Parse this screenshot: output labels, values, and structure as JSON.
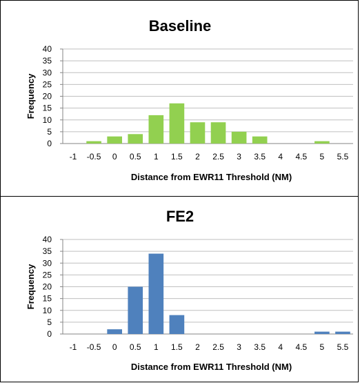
{
  "chart_data": [
    {
      "type": "bar",
      "title": "Baseline",
      "xlabel": "Distance from EWR11 Threshold (NM)",
      "ylabel": "Frequency",
      "categories": [
        "-1",
        "-0.5",
        "0",
        "0.5",
        "1",
        "1.5",
        "2",
        "2.5",
        "3",
        "3.5",
        "4",
        "4.5",
        "5",
        "5.5"
      ],
      "values": [
        0,
        1,
        3,
        4,
        12,
        17,
        9,
        9,
        5,
        3,
        0,
        0,
        1,
        0
      ],
      "ylim": [
        0,
        40
      ],
      "yticks": [
        "0",
        "5",
        "10",
        "15",
        "20",
        "25",
        "30",
        "35",
        "40"
      ],
      "color": "#92d050",
      "grid": true
    },
    {
      "type": "bar",
      "title": "FE2",
      "xlabel": "Distance from EWR11 Threshold (NM)",
      "ylabel": "Frequency",
      "categories": [
        "-1",
        "-0.5",
        "0",
        "0.5",
        "1",
        "1.5",
        "2",
        "2.5",
        "3",
        "3.5",
        "4",
        "4.5",
        "5",
        "5.5"
      ],
      "values": [
        0,
        0,
        2,
        20,
        34,
        8,
        0,
        0,
        0,
        0,
        0,
        0,
        1,
        1
      ],
      "ylim": [
        0,
        40
      ],
      "yticks": [
        "0",
        "5",
        "10",
        "15",
        "20",
        "25",
        "30",
        "35",
        "40"
      ],
      "color": "#4f81bd",
      "grid": true
    }
  ]
}
